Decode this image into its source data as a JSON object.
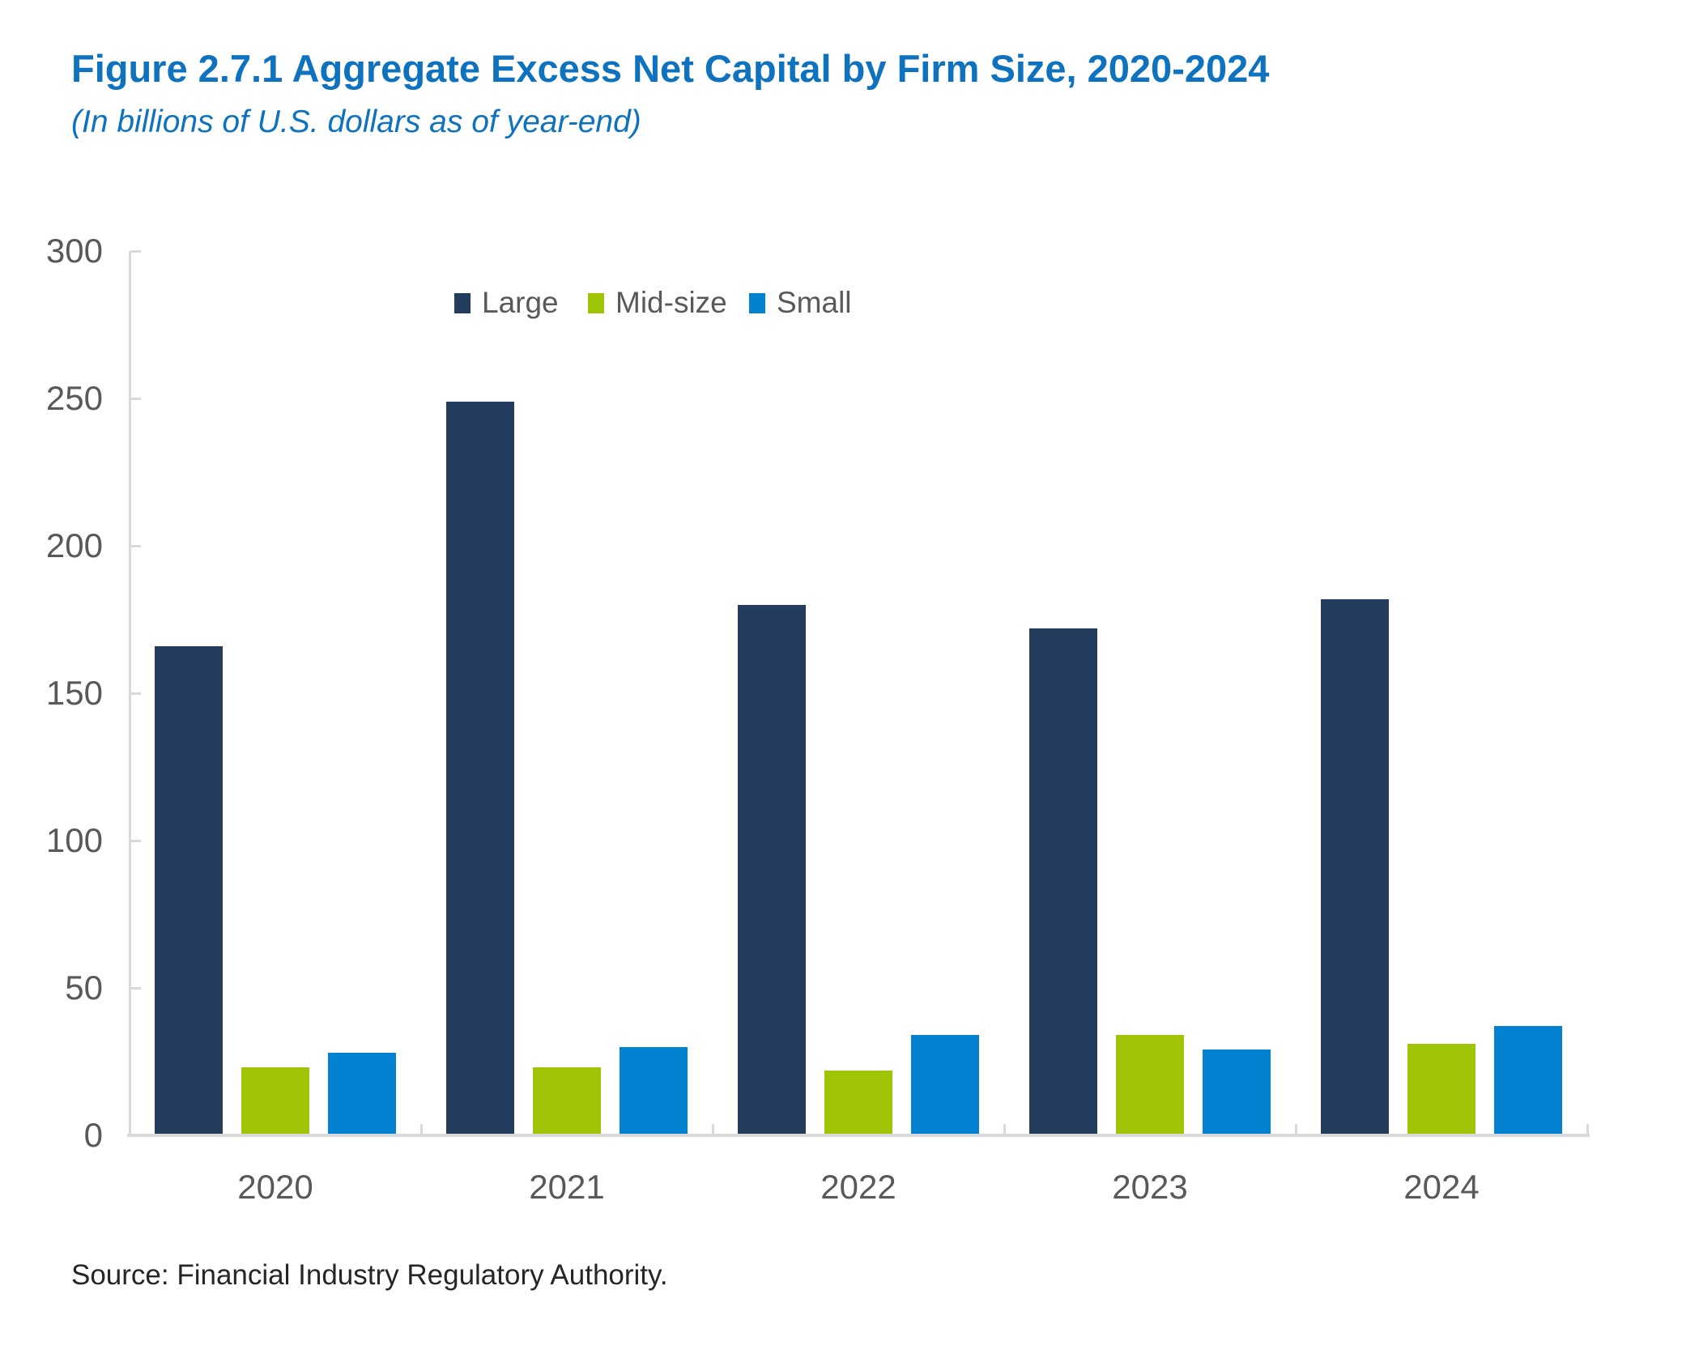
{
  "figure": {
    "title": "Figure 2.7.1 Aggregate Excess Net Capital by Firm Size, 2020-2024",
    "subtitle": "(In billions of U.S. dollars as of year-end)",
    "source": "Source: Financial Industry Regulatory Authority."
  },
  "colors": {
    "title_text": "#0E72BE",
    "axis": "#D9D9D9",
    "tick_text": "#595959",
    "source_text": "#262626"
  },
  "chart_data": {
    "type": "bar",
    "title": "Figure 2.7.1 Aggregate Excess Net Capital by Firm Size, 2020-2024",
    "subtitle": "(In billions of U.S. dollars as of year-end)",
    "categories": [
      "2020",
      "2021",
      "2022",
      "2023",
      "2024"
    ],
    "series": [
      {
        "name": "Large",
        "color": "#243D5F",
        "values": [
          166,
          249,
          180,
          172,
          182
        ]
      },
      {
        "name": "Mid-size",
        "color": "#9EC405",
        "values": [
          23,
          23,
          22,
          34,
          31
        ]
      },
      {
        "name": "Small",
        "color": "#0382D1",
        "values": [
          28,
          30,
          34,
          29,
          37
        ]
      }
    ],
    "xlabel": "",
    "ylabel": "",
    "ylim": [
      0,
      300
    ],
    "yticks": [
      0,
      50,
      100,
      150,
      200,
      250,
      300
    ],
    "grid": false,
    "legend_position": "top-center",
    "legend_entries": [
      "Large",
      "Mid-size",
      "Small"
    ],
    "source": "Source: Financial Industry Regulatory Authority."
  }
}
